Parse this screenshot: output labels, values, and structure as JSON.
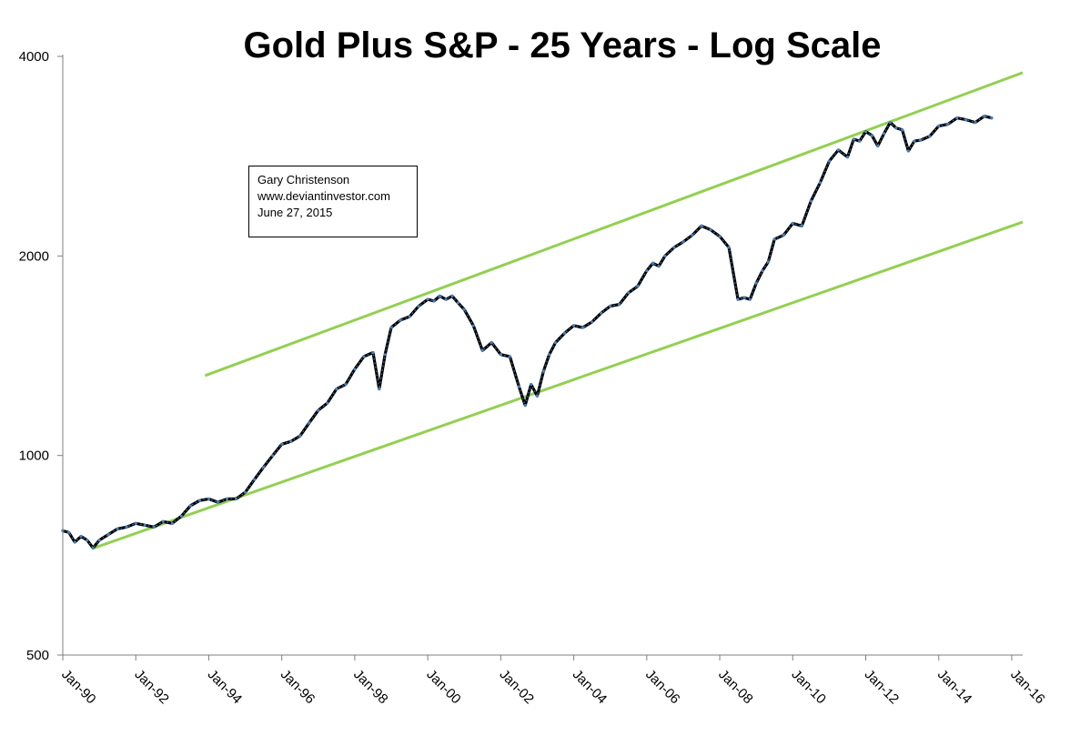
{
  "colors": {
    "background": "#ffffff",
    "axis": "#7f7f7f",
    "series_main": "#000000",
    "series_highlight": "#4a7ebb",
    "trend_channel": "#92d050"
  },
  "annotation": {
    "author": "Gary Christenson",
    "website": "www.deviantinvestor.com",
    "date": "June 27, 2015"
  },
  "chart_data": {
    "type": "line",
    "title": "Gold Plus S&P - 25 Years - Log Scale",
    "xlabel": "",
    "ylabel": "",
    "y_scale": "log",
    "ylim": [
      500,
      4000
    ],
    "y_ticks": [
      500,
      1000,
      2000,
      4000
    ],
    "y_tick_labels": [
      "500",
      "1000",
      "2000",
      "4000"
    ],
    "x_range": [
      1990.0,
      2016.3
    ],
    "x_ticks": [
      1990,
      1992,
      1994,
      1996,
      1998,
      2000,
      2002,
      2004,
      2006,
      2008,
      2010,
      2012,
      2014,
      2016
    ],
    "x_tick_labels": [
      "Jan-90",
      "Jan-92",
      "Jan-94",
      "Jan-96",
      "Jan-98",
      "Jan-00",
      "Jan-02",
      "Jan-04",
      "Jan-06",
      "Jan-08",
      "Jan-10",
      "Jan-12",
      "Jan-14",
      "Jan-16"
    ],
    "grid": false,
    "legend": "none",
    "series": [
      {
        "name": "Gold Plus S&P",
        "x": [
          1990.0,
          1990.17,
          1990.33,
          1990.5,
          1990.67,
          1990.83,
          1991.0,
          1991.25,
          1991.5,
          1991.75,
          1992.0,
          1992.25,
          1992.5,
          1992.75,
          1993.0,
          1993.25,
          1993.5,
          1993.75,
          1994.0,
          1994.25,
          1994.5,
          1994.75,
          1995.0,
          1995.25,
          1995.5,
          1995.75,
          1996.0,
          1996.25,
          1996.5,
          1996.75,
          1997.0,
          1997.25,
          1997.5,
          1997.75,
          1998.0,
          1998.25,
          1998.5,
          1998.67,
          1998.83,
          1999.0,
          1999.25,
          1999.5,
          1999.75,
          2000.0,
          2000.17,
          2000.33,
          2000.5,
          2000.67,
          2000.83,
          2001.0,
          2001.25,
          2001.5,
          2001.75,
          2002.0,
          2002.25,
          2002.5,
          2002.67,
          2002.83,
          2003.0,
          2003.17,
          2003.33,
          2003.5,
          2003.75,
          2004.0,
          2004.25,
          2004.5,
          2004.75,
          2005.0,
          2005.25,
          2005.5,
          2005.75,
          2006.0,
          2006.17,
          2006.33,
          2006.5,
          2006.75,
          2007.0,
          2007.25,
          2007.5,
          2007.75,
          2008.0,
          2008.25,
          2008.5,
          2008.67,
          2008.83,
          2009.0,
          2009.17,
          2009.33,
          2009.5,
          2009.75,
          2010.0,
          2010.25,
          2010.5,
          2010.75,
          2011.0,
          2011.25,
          2011.5,
          2011.67,
          2011.83,
          2012.0,
          2012.17,
          2012.33,
          2012.5,
          2012.67,
          2012.83,
          2013.0,
          2013.17,
          2013.33,
          2013.5,
          2013.75,
          2014.0,
          2014.25,
          2014.5,
          2014.75,
          2015.0,
          2015.25,
          2015.45
        ],
        "y": [
          770,
          765,
          740,
          755,
          745,
          725,
          745,
          760,
          775,
          780,
          790,
          785,
          780,
          795,
          790,
          810,
          840,
          855,
          860,
          850,
          860,
          860,
          880,
          920,
          960,
          1000,
          1040,
          1050,
          1070,
          1120,
          1170,
          1200,
          1260,
          1280,
          1350,
          1410,
          1430,
          1260,
          1420,
          1560,
          1600,
          1620,
          1680,
          1720,
          1710,
          1740,
          1720,
          1740,
          1700,
          1660,
          1570,
          1440,
          1480,
          1420,
          1410,
          1270,
          1190,
          1280,
          1230,
          1340,
          1420,
          1480,
          1530,
          1570,
          1560,
          1590,
          1640,
          1680,
          1690,
          1760,
          1800,
          1900,
          1950,
          1930,
          2000,
          2060,
          2100,
          2150,
          2220,
          2190,
          2140,
          2060,
          1720,
          1730,
          1720,
          1820,
          1900,
          1960,
          2120,
          2150,
          2240,
          2220,
          2420,
          2580,
          2780,
          2890,
          2820,
          3000,
          2980,
          3080,
          3040,
          2930,
          3060,
          3180,
          3120,
          3100,
          2880,
          2980,
          2990,
          3030,
          3140,
          3160,
          3230,
          3210,
          3180,
          3250,
          3230
        ]
      },
      {
        "name": "Upper trend channel",
        "x": [
          1993.9,
          2016.3
        ],
        "y": [
          1320,
          3780
        ]
      },
      {
        "name": "Lower trend channel",
        "x": [
          1990.85,
          2016.3
        ],
        "y": [
          725,
          2250
        ]
      }
    ]
  }
}
